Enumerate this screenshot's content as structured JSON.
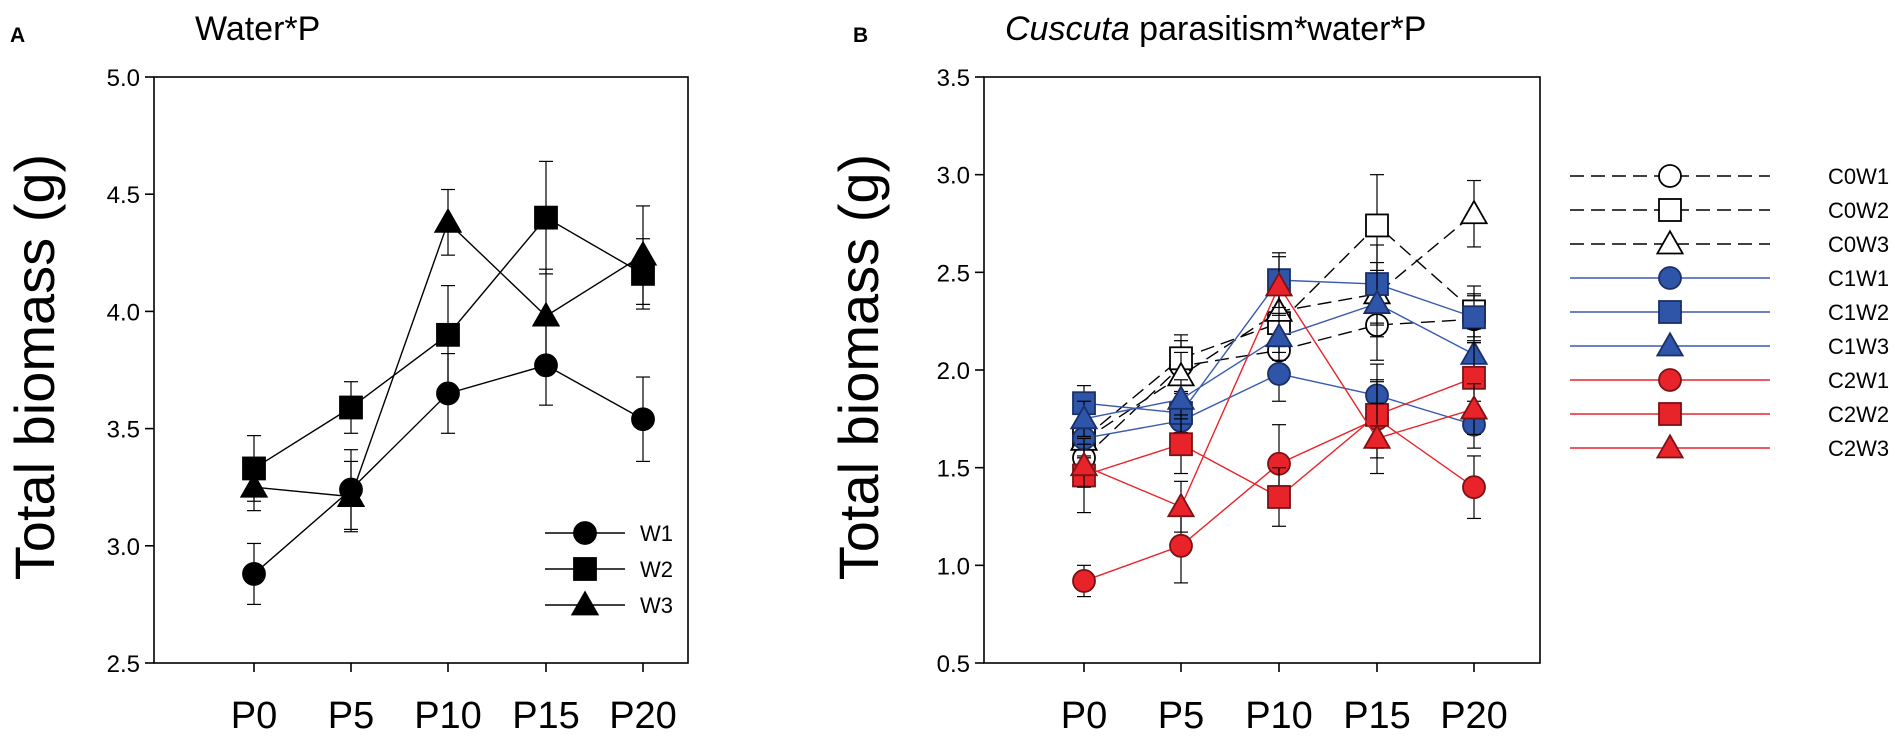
{
  "chart_data": [
    {
      "panel": "A",
      "type": "line",
      "title": "Water*P",
      "xlabel": "",
      "ylabel": "Total biomass (g)",
      "categories": [
        "P0",
        "P5",
        "P10",
        "P15",
        "P20"
      ],
      "ylim": [
        2.5,
        5.0
      ],
      "yticks": [
        "2.5",
        "3.0",
        "3.5",
        "4.0",
        "4.5",
        "5.0"
      ],
      "legend_position": "bottom-right",
      "series": [
        {
          "name": "W1",
          "marker": "circle",
          "fill": "#000000",
          "stroke": "#000000",
          "line": "#000000",
          "dash": "solid",
          "values": [
            2.88,
            3.24,
            3.65,
            3.77,
            3.54
          ],
          "errors": [
            0.13,
            0.17,
            0.17,
            0.17,
            0.18
          ]
        },
        {
          "name": "W2",
          "marker": "square",
          "fill": "#000000",
          "stroke": "#000000",
          "line": "#000000",
          "dash": "solid",
          "values": [
            3.33,
            3.59,
            3.9,
            4.4,
            4.16
          ],
          "errors": [
            0.14,
            0.11,
            0.21,
            0.24,
            0.15
          ]
        },
        {
          "name": "W3",
          "marker": "triangle",
          "fill": "#000000",
          "stroke": "#000000",
          "line": "#000000",
          "dash": "solid",
          "values": [
            3.25,
            3.21,
            4.38,
            3.98,
            4.24
          ],
          "errors": [
            0.1,
            0.15,
            0.14,
            0.2,
            0.21
          ]
        }
      ]
    },
    {
      "panel": "B",
      "type": "line",
      "title_italic": "Cuscuta",
      "title_rest": " parasitism*water*P",
      "xlabel": "",
      "ylabel": "Total biomass (g)",
      "categories": [
        "P0",
        "P5",
        "P10",
        "P15",
        "P20"
      ],
      "ylim": [
        0.5,
        3.5
      ],
      "yticks": [
        "0.5",
        "1.0",
        "1.5",
        "2.0",
        "2.5",
        "3.0",
        "3.5"
      ],
      "legend_position": "right-outside",
      "series": [
        {
          "name": "C0W1",
          "marker": "circle",
          "fill": "#ffffff",
          "stroke": "#000000",
          "line": "#000000",
          "dash": "dashed",
          "values": [
            1.55,
            2.02,
            2.1,
            2.23,
            2.26
          ],
          "errors": [
            0.09,
            0.13,
            0.15,
            0.18,
            0.12
          ]
        },
        {
          "name": "C0W2",
          "marker": "square",
          "fill": "#ffffff",
          "stroke": "#000000",
          "line": "#000000",
          "dash": "dashed",
          "values": [
            1.65,
            2.06,
            2.24,
            2.74,
            2.3
          ],
          "errors": [
            0.1,
            0.12,
            0.15,
            0.26,
            0.13
          ]
        },
        {
          "name": "C0W3",
          "marker": "triangle",
          "fill": "#ffffff",
          "stroke": "#000000",
          "line": "#000000",
          "dash": "dashed",
          "values": [
            1.64,
            1.97,
            2.3,
            2.39,
            2.8
          ],
          "errors": [
            0.08,
            0.12,
            0.14,
            0.16,
            0.17
          ]
        },
        {
          "name": "C1W1",
          "marker": "circle",
          "fill": "#2e55a8",
          "stroke": "#1a2f66",
          "line": "#3a5ab0",
          "dash": "solid",
          "values": [
            1.65,
            1.74,
            1.98,
            1.87,
            1.72
          ],
          "errors": [
            0.1,
            0.12,
            0.14,
            0.16,
            0.12
          ]
        },
        {
          "name": "C1W2",
          "marker": "square",
          "fill": "#2e55a8",
          "stroke": "#1a2f66",
          "line": "#3a5ab0",
          "dash": "solid",
          "values": [
            1.83,
            1.78,
            2.46,
            2.44,
            2.27
          ],
          "errors": [
            0.09,
            0.1,
            0.14,
            0.2,
            0.12
          ]
        },
        {
          "name": "C1W3",
          "marker": "triangle",
          "fill": "#2e55a8",
          "stroke": "#1a2f66",
          "line": "#3a5ab0",
          "dash": "solid",
          "values": [
            1.75,
            1.85,
            2.17,
            2.34,
            2.08
          ],
          "errors": [
            0.09,
            0.1,
            0.12,
            0.17,
            0.13
          ]
        },
        {
          "name": "C2W1",
          "marker": "circle",
          "fill": "#e8242a",
          "stroke": "#7a1216",
          "line": "#e8242a",
          "dash": "solid",
          "values": [
            0.92,
            1.1,
            1.52,
            1.75,
            1.4
          ],
          "errors": [
            0.08,
            0.19,
            0.2,
            0.2,
            0.16
          ]
        },
        {
          "name": "C2W2",
          "marker": "square",
          "fill": "#e8242a",
          "stroke": "#7a1216",
          "line": "#e8242a",
          "dash": "solid",
          "values": [
            1.46,
            1.62,
            1.35,
            1.77,
            1.96
          ],
          "errors": [
            0.19,
            0.15,
            0.15,
            0.17,
            0.18
          ]
        },
        {
          "name": "C2W3",
          "marker": "triangle",
          "fill": "#e8242a",
          "stroke": "#7a1216",
          "line": "#e8242a",
          "dash": "solid",
          "values": [
            1.51,
            1.3,
            2.43,
            1.65,
            1.8
          ],
          "errors": [
            0.11,
            0.13,
            0.15,
            0.18,
            0.13
          ]
        }
      ]
    }
  ]
}
